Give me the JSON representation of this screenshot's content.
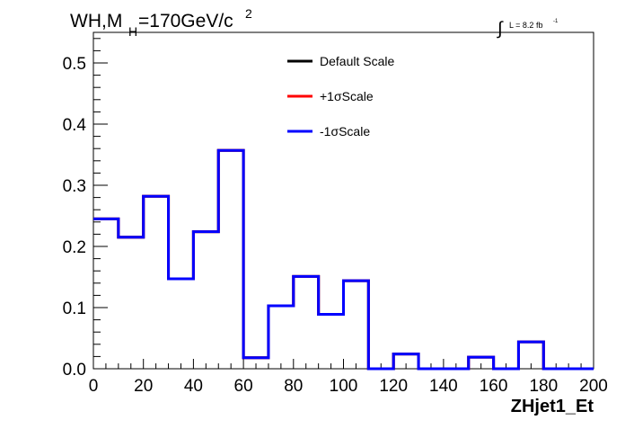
{
  "header": {
    "title_main": "WH,M",
    "title_sub": "H",
    "title_rest": "=170GeV/c",
    "title_sup": "2",
    "lumi_integral": "∫",
    "lumi_text": "L = 8.2 fb",
    "lumi_sup": "-1"
  },
  "chart_data": {
    "type": "step",
    "title": "WH,MH=170GeV/c2",
    "xlabel": "ZHjet1_Et",
    "ylabel": "",
    "xlim": [
      0,
      200
    ],
    "ylim": [
      0,
      0.55
    ],
    "x_ticks": [
      0,
      20,
      40,
      60,
      80,
      100,
      120,
      140,
      160,
      180,
      200
    ],
    "y_ticks": [
      0.0,
      0.1,
      0.2,
      0.3,
      0.4,
      0.5
    ],
    "y_tick_labels": [
      "0.0",
      "0.1",
      "0.2",
      "0.3",
      "0.4",
      "0.5"
    ],
    "bin_edges": [
      0,
      10,
      20,
      30,
      40,
      50,
      60,
      70,
      80,
      90,
      100,
      110,
      120,
      130,
      140,
      150,
      160,
      170,
      180,
      190,
      200
    ],
    "series": [
      {
        "name": "Default Scale",
        "color": "#000000",
        "values": [
          0.245,
          0.215,
          0.282,
          0.147,
          0.224,
          0.357,
          0.018,
          0.103,
          0.151,
          0.089,
          0.144,
          0.0,
          0.024,
          0.0,
          0.0,
          0.019,
          0.0,
          0.044,
          0.0,
          0.0
        ]
      },
      {
        "name": "+1σScale",
        "color": "#ff0000",
        "values": [
          0.245,
          0.215,
          0.282,
          0.147,
          0.224,
          0.357,
          0.018,
          0.103,
          0.151,
          0.089,
          0.144,
          0.0,
          0.024,
          0.0,
          0.0,
          0.019,
          0.0,
          0.044,
          0.0,
          0.0
        ]
      },
      {
        "name": "-1σScale",
        "color": "#0000ff",
        "values": [
          0.245,
          0.215,
          0.282,
          0.147,
          0.224,
          0.357,
          0.018,
          0.103,
          0.151,
          0.089,
          0.144,
          0.0,
          0.024,
          0.0,
          0.0,
          0.019,
          0.0,
          0.044,
          0.0,
          0.0
        ]
      }
    ],
    "legend_placement": "top-center",
    "grid": false
  }
}
